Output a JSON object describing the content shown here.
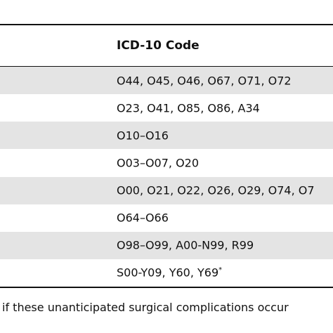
{
  "table": {
    "header": [
      "ICD-10 Code"
    ],
    "rows": [
      [
        "O44, O45, O46, O67, O71, O72"
      ],
      [
        "O23, O41, O85, O86, A34"
      ],
      [
        "O10–O16"
      ],
      [
        "O03–O07, O20"
      ],
      [
        "O00, O21, O22, O26, O29, O74, O7"
      ],
      [
        "O64–O66"
      ],
      [
        "O98–O99, A00-N99, R99"
      ],
      [
        "S00-Y09, Y60, Y69"
      ]
    ],
    "row_note": {
      "row": 7,
      "mark": "*"
    }
  },
  "footnote": "if these unanticipated surgical complications occur"
}
